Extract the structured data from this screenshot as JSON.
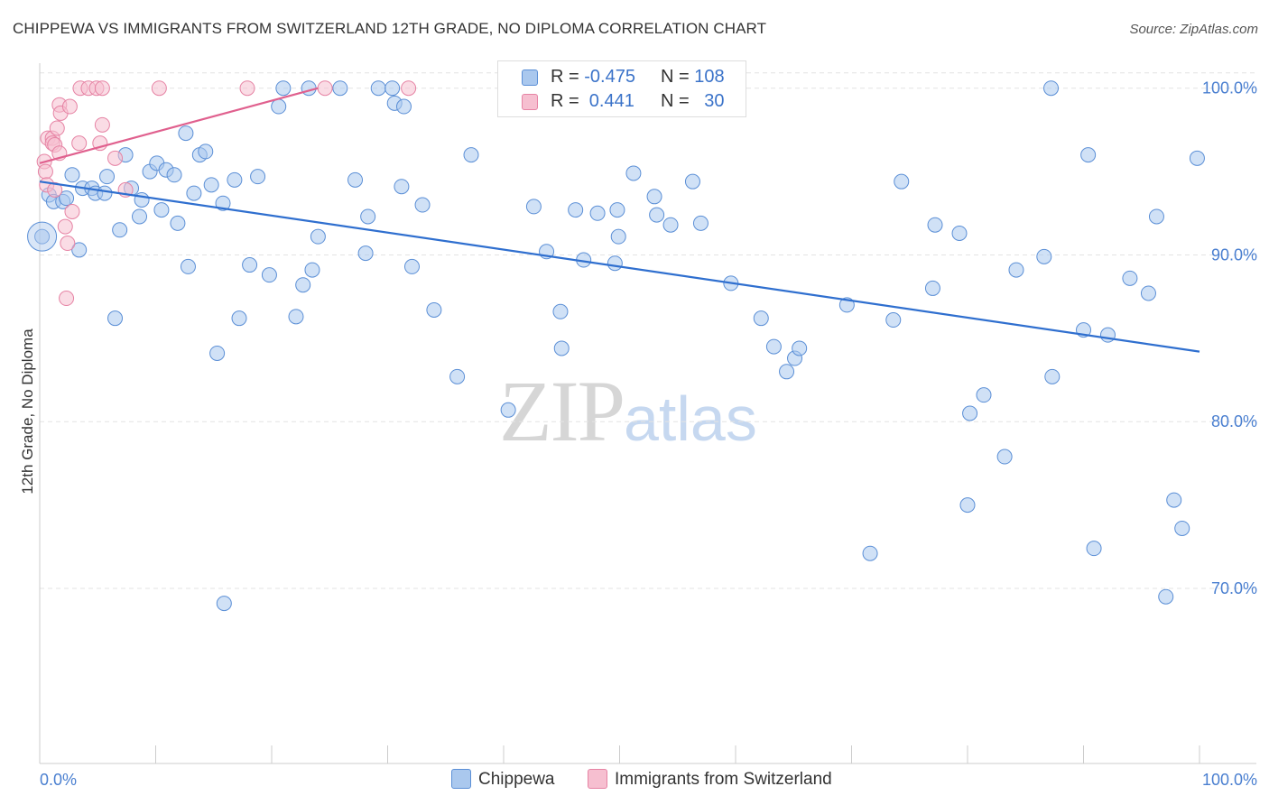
{
  "header": {
    "title": "CHIPPEWA VS IMMIGRANTS FROM SWITZERLAND 12TH GRADE, NO DIPLOMA CORRELATION CHART",
    "source": "Source: ZipAtlas.com"
  },
  "watermark": {
    "zip": "ZIP",
    "atlas": "atlas"
  },
  "legend_top": {
    "rows": [
      {
        "r_label": "R = ",
        "r_value": "-0.475",
        "n_label": "N = ",
        "n_value": "108"
      },
      {
        "r_label": "R = ",
        "r_value": " 0.441",
        "n_label": "N = ",
        "n_value": "30"
      }
    ]
  },
  "legend_bottom": {
    "items": [
      "Chippewa",
      "Immigrants from Switzerland"
    ]
  },
  "colors": {
    "chippewa_fill": "#aac8ee",
    "chippewa_stroke": "#5b8fd6",
    "chippewa_line": "#2f6fcf",
    "swiss_fill": "#f6bfd0",
    "swiss_stroke": "#e683a4",
    "swiss_line": "#e0608e",
    "tick_text": "#4a7fd0",
    "grid": "#e3e3e3"
  },
  "chart_data": {
    "type": "scatter",
    "title": "CHIPPEWA VS IMMIGRANTS FROM SWITZERLAND 12TH GRADE, NO DIPLOMA CORRELATION CHART",
    "xlabel": "",
    "ylabel": "12th Grade, No Diploma",
    "xlim": [
      0,
      100
    ],
    "ylim": [
      59.5,
      101.5
    ],
    "x_tick_labels": [
      "0.0%",
      "100.0%"
    ],
    "y_ticks": [
      70,
      80,
      90,
      100
    ],
    "y_tick_labels": [
      "70.0%",
      "80.0%",
      "90.0%",
      "100.0%"
    ],
    "grid": true,
    "legend_position": "top-center",
    "series": [
      {
        "name": "Chippewa",
        "stats": {
          "R": -0.475,
          "N": 108
        },
        "trend": {
          "x": [
            0,
            100
          ],
          "y": [
            94.4,
            84.2
          ]
        },
        "points": [
          [
            0.2,
            91.1
          ],
          [
            0.8,
            93.6
          ],
          [
            1.2,
            93.2
          ],
          [
            2.0,
            93.2
          ],
          [
            2.3,
            93.4
          ],
          [
            2.8,
            94.8
          ],
          [
            3.4,
            90.3
          ],
          [
            3.7,
            94.0
          ],
          [
            4.5,
            94.0
          ],
          [
            4.8,
            93.7
          ],
          [
            5.6,
            93.7
          ],
          [
            5.8,
            94.7
          ],
          [
            6.5,
            86.2
          ],
          [
            6.9,
            91.5
          ],
          [
            7.4,
            96.0
          ],
          [
            7.9,
            94.0
          ],
          [
            8.6,
            92.3
          ],
          [
            8.8,
            93.3
          ],
          [
            9.5,
            95.0
          ],
          [
            10.1,
            95.5
          ],
          [
            10.5,
            92.7
          ],
          [
            10.9,
            95.1
          ],
          [
            11.6,
            94.8
          ],
          [
            11.9,
            91.9
          ],
          [
            12.6,
            97.3
          ],
          [
            12.8,
            89.3
          ],
          [
            13.3,
            93.7
          ],
          [
            13.8,
            96.0
          ],
          [
            14.3,
            96.2
          ],
          [
            14.8,
            94.2
          ],
          [
            15.3,
            84.1
          ],
          [
            15.8,
            93.1
          ],
          [
            15.9,
            69.1
          ],
          [
            16.8,
            94.5
          ],
          [
            17.2,
            86.2
          ],
          [
            18.1,
            89.4
          ],
          [
            18.8,
            94.7
          ],
          [
            19.8,
            88.8
          ],
          [
            20.6,
            98.9
          ],
          [
            21.0,
            100.0
          ],
          [
            22.1,
            86.3
          ],
          [
            22.7,
            88.2
          ],
          [
            23.2,
            100.0
          ],
          [
            23.5,
            89.1
          ],
          [
            24.0,
            91.1
          ],
          [
            25.9,
            100.0
          ],
          [
            27.2,
            94.5
          ],
          [
            28.1,
            90.1
          ],
          [
            28.3,
            92.3
          ],
          [
            29.2,
            100.0
          ],
          [
            30.4,
            100.0
          ],
          [
            30.6,
            99.1
          ],
          [
            31.2,
            94.1
          ],
          [
            31.4,
            98.9
          ],
          [
            32.1,
            89.3
          ],
          [
            33.0,
            93.0
          ],
          [
            34.0,
            86.7
          ],
          [
            36.0,
            82.7
          ],
          [
            37.2,
            96.0
          ],
          [
            40.4,
            80.7
          ],
          [
            42.6,
            92.9
          ],
          [
            43.7,
            90.2
          ],
          [
            44.9,
            86.6
          ],
          [
            45.0,
            84.4
          ],
          [
            46.2,
            92.7
          ],
          [
            46.9,
            89.7
          ],
          [
            48.1,
            92.5
          ],
          [
            49.6,
            89.5
          ],
          [
            49.8,
            92.7
          ],
          [
            49.9,
            91.1
          ],
          [
            51.2,
            94.9
          ],
          [
            53.0,
            93.5
          ],
          [
            53.2,
            92.4
          ],
          [
            54.4,
            91.8
          ],
          [
            56.3,
            94.4
          ],
          [
            57.0,
            91.9
          ],
          [
            59.6,
            88.3
          ],
          [
            62.2,
            86.2
          ],
          [
            63.3,
            84.5
          ],
          [
            64.4,
            83.0
          ],
          [
            65.1,
            83.8
          ],
          [
            65.5,
            84.4
          ],
          [
            69.6,
            87.0
          ],
          [
            71.6,
            72.1
          ],
          [
            73.6,
            86.1
          ],
          [
            74.3,
            94.4
          ],
          [
            77.0,
            88.0
          ],
          [
            77.2,
            91.8
          ],
          [
            79.3,
            91.3
          ],
          [
            80.0,
            75.0
          ],
          [
            80.2,
            80.5
          ],
          [
            81.4,
            81.6
          ],
          [
            83.2,
            77.9
          ],
          [
            84.2,
            89.1
          ],
          [
            86.6,
            89.9
          ],
          [
            87.2,
            100.0
          ],
          [
            87.3,
            82.7
          ],
          [
            90.0,
            85.5
          ],
          [
            90.4,
            96.0
          ],
          [
            90.9,
            72.4
          ],
          [
            92.1,
            85.2
          ],
          [
            94.0,
            88.6
          ],
          [
            95.6,
            87.7
          ],
          [
            96.3,
            92.3
          ],
          [
            97.1,
            69.5
          ],
          [
            97.8,
            75.3
          ],
          [
            98.5,
            73.6
          ],
          [
            99.8,
            95.8
          ]
        ]
      },
      {
        "name": "Immigrants from Switzerland",
        "stats": {
          "R": 0.441,
          "N": 30
        },
        "trend": {
          "x": [
            0,
            24
          ],
          "y": [
            95.5,
            100.0
          ]
        },
        "points": [
          [
            0.4,
            95.6
          ],
          [
            0.5,
            95.0
          ],
          [
            0.6,
            94.2
          ],
          [
            0.7,
            97.0
          ],
          [
            1.1,
            97.0
          ],
          [
            1.1,
            96.7
          ],
          [
            1.3,
            93.9
          ],
          [
            1.3,
            96.6
          ],
          [
            1.5,
            97.6
          ],
          [
            1.7,
            99.0
          ],
          [
            1.7,
            96.1
          ],
          [
            1.8,
            98.5
          ],
          [
            2.2,
            91.7
          ],
          [
            2.3,
            87.4
          ],
          [
            2.4,
            90.7
          ],
          [
            2.6,
            98.9
          ],
          [
            2.8,
            92.6
          ],
          [
            3.4,
            96.7
          ],
          [
            3.5,
            100.0
          ],
          [
            4.2,
            100.0
          ],
          [
            4.9,
            100.0
          ],
          [
            5.2,
            96.7
          ],
          [
            5.4,
            100.0
          ],
          [
            5.4,
            97.8
          ],
          [
            6.5,
            95.8
          ],
          [
            7.4,
            93.9
          ],
          [
            10.3,
            100.0
          ],
          [
            17.9,
            100.0
          ],
          [
            24.6,
            100.0
          ],
          [
            31.8,
            100.0
          ]
        ]
      }
    ]
  }
}
